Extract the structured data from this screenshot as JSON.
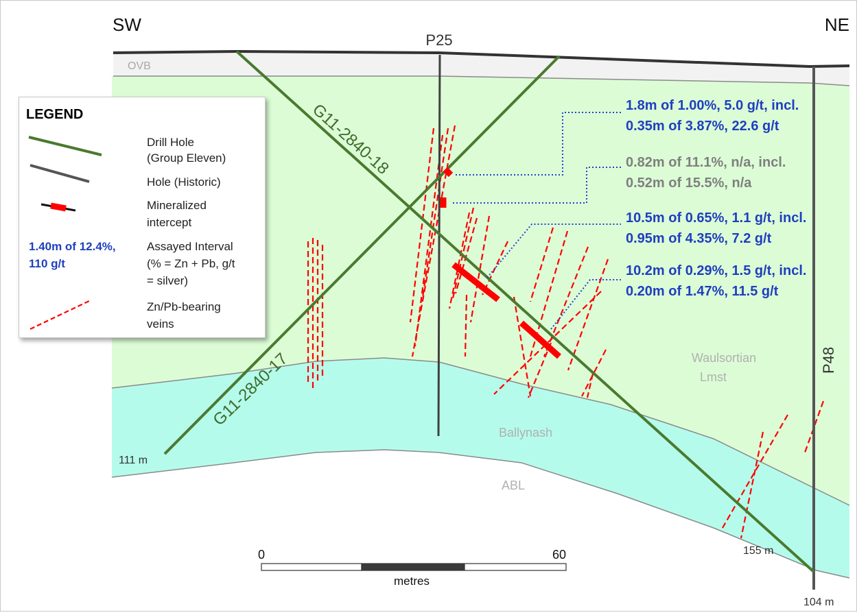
{
  "direction": {
    "left": "SW",
    "right": "NE"
  },
  "holes": {
    "p25": "P25",
    "p48": "P48",
    "g11_17": "G11-2840-17",
    "g11_18": "G11-2840-18"
  },
  "depths": {
    "g11_17_end": "111 m",
    "g11_18_end": "155 m",
    "p48_end": "104 m"
  },
  "units": {
    "ovb": "OVB",
    "waulsortian_1": "Waulsortian",
    "waulsortian_2": "Lmst",
    "ballynash": "Ballynash",
    "abl": "ABL"
  },
  "intercepts": [
    {
      "line1": "1.8m of 1.00%, 5.0 g/t, incl.",
      "line2": "0.35m of 3.87%, 22.6 g/t",
      "color": "#1f3fbf"
    },
    {
      "line1": "0.82m of 11.1%, n/a, incl.",
      "line2": "0.52m of 15.5%, n/a",
      "color": "#7f7f7f"
    },
    {
      "line1": "10.5m of 0.65%, 1.1 g/t, incl.",
      "line2": "0.95m of 4.35%, 7.2 g/t",
      "color": "#1f3fbf"
    },
    {
      "line1": "10.2m of 0.29%, 1.5 g/t, incl.",
      "line2": "0.20m of 1.47%, 11.5 g/t",
      "color": "#1f3fbf"
    }
  ],
  "scale": {
    "start": "0",
    "end": "60",
    "unit": "metres"
  },
  "legend": {
    "title": "LEGEND",
    "drill_hole_1": "Drill Hole",
    "drill_hole_2": "(Group Eleven)",
    "historic": "Hole (Historic)",
    "mineralized_1": "Mineralized",
    "mineralized_2": "intercept",
    "sample_1": "1.40m of 12.4%,",
    "sample_2": "110 g/t",
    "assay_1": "Assayed Interval",
    "assay_2": "(% = Zn + Pb, g/t",
    "assay_3": "= silver)",
    "veins_1": "Zn/Pb-bearing",
    "veins_2": "veins"
  },
  "colors": {
    "drill_hole": "#4a7a2e",
    "historic_hole": "#404040",
    "intercept": "#ff0000",
    "vein": "#ff0000",
    "waulsortian": "#dcfcd6",
    "ballynash": "#b5fbeb",
    "ovb": "#f2f2f2",
    "blue_text": "#1f3fbf",
    "gray_text": "#7f7f7f"
  }
}
